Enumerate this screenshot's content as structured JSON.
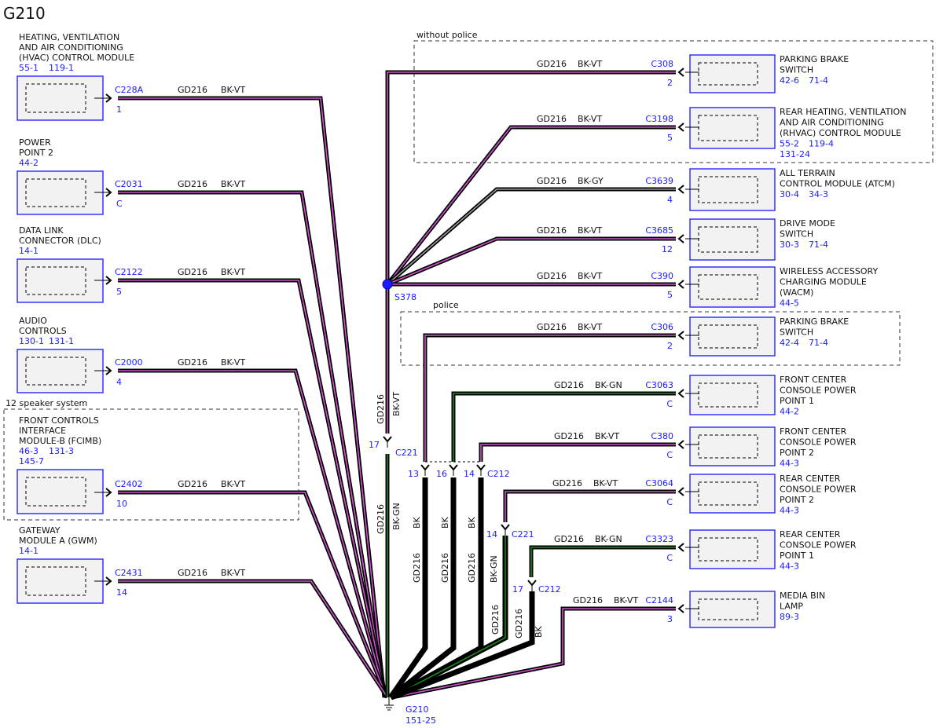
{
  "title": "G210",
  "colors": {
    "module_border": "#3333ff",
    "module_fill": "#f2f2f2",
    "ref_text": "#1a1aff",
    "stripe_vt": "#cc55cc",
    "stripe_gn": "#1a8a1a",
    "stripe_gy": "#999999"
  },
  "groups": {
    "without_police": "without police",
    "police": "police",
    "speaker": "12 speaker system"
  },
  "left_modules": [
    {
      "name_lines": [
        "HEATING, VENTILATION",
        "AND AIR CONDITIONING",
        "(HVAC) CONTROL MODULE"
      ],
      "refs": [
        [
          "55-1",
          "119-1"
        ]
      ],
      "connector": "C228A",
      "pin": "1",
      "circuit": "GD216",
      "color": "BK-VT"
    },
    {
      "name_lines": [
        "POWER",
        "POINT 2"
      ],
      "refs": [
        [
          "44-2"
        ]
      ],
      "connector": "C2031",
      "pin": "C",
      "circuit": "GD216",
      "color": "BK-VT"
    },
    {
      "name_lines": [
        "DATA LINK",
        "CONNECTOR (DLC)"
      ],
      "refs": [
        [
          "14-1"
        ]
      ],
      "connector": "C2122",
      "pin": "5",
      "circuit": "GD216",
      "color": "BK-VT"
    },
    {
      "name_lines": [
        "AUDIO",
        "CONTROLS"
      ],
      "refs": [
        [
          "130-1",
          "131-1"
        ]
      ],
      "connector": "C2000",
      "pin": "4",
      "circuit": "GD216",
      "color": "BK-VT"
    },
    {
      "name_lines": [
        "FRONT CONTROLS",
        "INTERFACE",
        "MODULE-B (FCIMB)"
      ],
      "refs": [
        [
          "46-3",
          "131-3"
        ],
        [
          "145-7"
        ]
      ],
      "connector": "C2402",
      "pin": "10",
      "circuit": "GD216",
      "color": "BK-VT"
    },
    {
      "name_lines": [
        "GATEWAY",
        "MODULE A (GWM)"
      ],
      "refs": [
        [
          "14-1"
        ]
      ],
      "connector": "C2431",
      "pin": "14",
      "circuit": "GD216",
      "color": "BK-VT"
    }
  ],
  "right_modules": [
    {
      "name_lines": [
        "PARKING BRAKE",
        "SWITCH"
      ],
      "refs": [
        [
          "42-6",
          "71-4"
        ]
      ],
      "connector": "C308",
      "pin": "2",
      "circuit": "GD216",
      "color": "BK-VT"
    },
    {
      "name_lines": [
        "REAR HEATING, VENTILATION",
        "AND AIR CONDITIONING",
        "(RHVAC) CONTROL MODULE"
      ],
      "refs": [
        [
          "55-2",
          "119-4"
        ],
        [
          "131-24"
        ]
      ],
      "connector": "C3198",
      "pin": "5",
      "circuit": "GD216",
      "color": "BK-VT"
    },
    {
      "name_lines": [
        "ALL TERRAIN",
        "CONTROL MODULE (ATCM)"
      ],
      "refs": [
        [
          "30-4",
          "34-3"
        ]
      ],
      "connector": "C3639",
      "pin": "4",
      "circuit": "GD216",
      "color": "BK-GY"
    },
    {
      "name_lines": [
        "DRIVE MODE",
        "SWITCH"
      ],
      "refs": [
        [
          "30-3",
          "71-4"
        ]
      ],
      "connector": "C3685",
      "pin": "12",
      "circuit": "GD216",
      "color": "BK-VT"
    },
    {
      "name_lines": [
        "WIRELESS ACCESSORY",
        "CHARGING MODULE",
        "(WACM)"
      ],
      "refs": [
        [
          "44-5"
        ]
      ],
      "connector": "C390",
      "pin": "5",
      "circuit": "GD216",
      "color": "BK-VT"
    },
    {
      "name_lines": [
        "PARKING BRAKE",
        "SWITCH"
      ],
      "refs": [
        [
          "42-4",
          "71-4"
        ]
      ],
      "connector": "C306",
      "pin": "2",
      "circuit": "GD216",
      "color": "BK-VT"
    },
    {
      "name_lines": [
        "FRONT CENTER",
        "CONSOLE POWER",
        "POINT 1"
      ],
      "refs": [
        [
          "44-2"
        ]
      ],
      "connector": "C3063",
      "pin": "C",
      "circuit": "GD216",
      "color": "BK-GN"
    },
    {
      "name_lines": [
        "FRONT CENTER",
        "CONSOLE POWER",
        "POINT 2"
      ],
      "refs": [
        [
          "44-3"
        ]
      ],
      "connector": "C380",
      "pin": "C",
      "circuit": "GD216",
      "color": "BK-VT"
    },
    {
      "name_lines": [
        "REAR CENTER",
        "CONSOLE POWER",
        "POINT 2"
      ],
      "refs": [
        [
          "44-3"
        ]
      ],
      "connector": "C3064",
      "pin": "C",
      "circuit": "GD216",
      "color": "BK-VT"
    },
    {
      "name_lines": [
        "REAR CENTER",
        "CONSOLE POWER",
        "POINT 1"
      ],
      "refs": [
        [
          "44-3"
        ]
      ],
      "connector": "C3323",
      "pin": "C",
      "circuit": "GD216",
      "color": "BK-GN"
    },
    {
      "name_lines": [
        "MEDIA BIN",
        "LAMP"
      ],
      "refs": [
        [
          "89-3"
        ]
      ],
      "connector": "C2144",
      "pin": "3",
      "circuit": "GD216",
      "color": "BK-VT"
    }
  ],
  "splice": {
    "name": "S378"
  },
  "inline": [
    {
      "connector": "C221",
      "pin": "17"
    },
    {
      "connector": "C212",
      "pins": [
        "13",
        "16",
        "14"
      ]
    },
    {
      "connector": "C221",
      "pin": "14"
    },
    {
      "connector": "C212",
      "pin": "17"
    }
  ],
  "vertical_labels": {
    "s378_circuit": "GD216",
    "s378_color": "BK-VT",
    "c221_circuit": "GD216",
    "c221_color": "BK-GN",
    "c212_13_color": "BK",
    "c212_13_circuit": "GD216",
    "c212_16_color": "BK",
    "c212_16_circuit": "GD216",
    "c212_14_color": "BK",
    "c212_14_circuit": "GD216",
    "c221_14_color": "BK-GN",
    "c221_14_circuit": "GD216",
    "c212_17_circuit": "GD216",
    "c212_17_color": "BK"
  },
  "ground": {
    "name": "G210",
    "ref": "151-25"
  }
}
